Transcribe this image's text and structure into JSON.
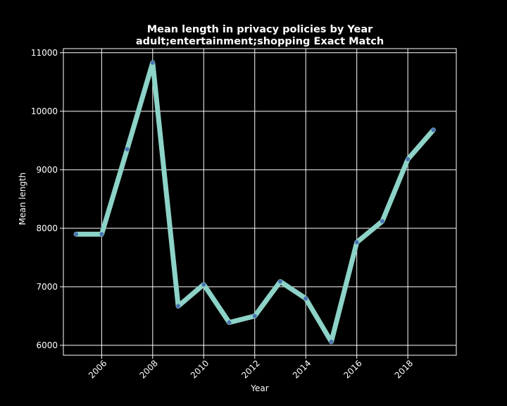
{
  "chart_data": {
    "type": "line",
    "title": "Mean length in privacy policies by Year",
    "subtitle": "adult;entertainment;shopping Exact Match",
    "xlabel": "Year",
    "ylabel": "Mean length",
    "x": [
      2005,
      2006,
      2007,
      2008,
      2009,
      2010,
      2011,
      2012,
      2013,
      2014,
      2015,
      2016,
      2017,
      2018,
      2019
    ],
    "series": [
      {
        "values": [
          7900,
          7900,
          9350,
          10830,
          6670,
          7040,
          6390,
          6500,
          7090,
          6800,
          6060,
          7760,
          8120,
          9180,
          9680
        ]
      }
    ],
    "xticks": [
      "2006",
      "2008",
      "2010",
      "2012",
      "2014",
      "2016",
      "2018"
    ],
    "yticks": [
      "6000",
      "7000",
      "8000",
      "9000",
      "10000",
      "11000"
    ],
    "xlim": [
      2004.5,
      2019.9
    ],
    "ylim": [
      5830,
      11070
    ],
    "grid": true,
    "colors": {
      "background": "#000000",
      "line": "#8dd3c7",
      "marker": "#4c72b0",
      "grid": "#ffffff",
      "text": "#ffffff"
    }
  }
}
